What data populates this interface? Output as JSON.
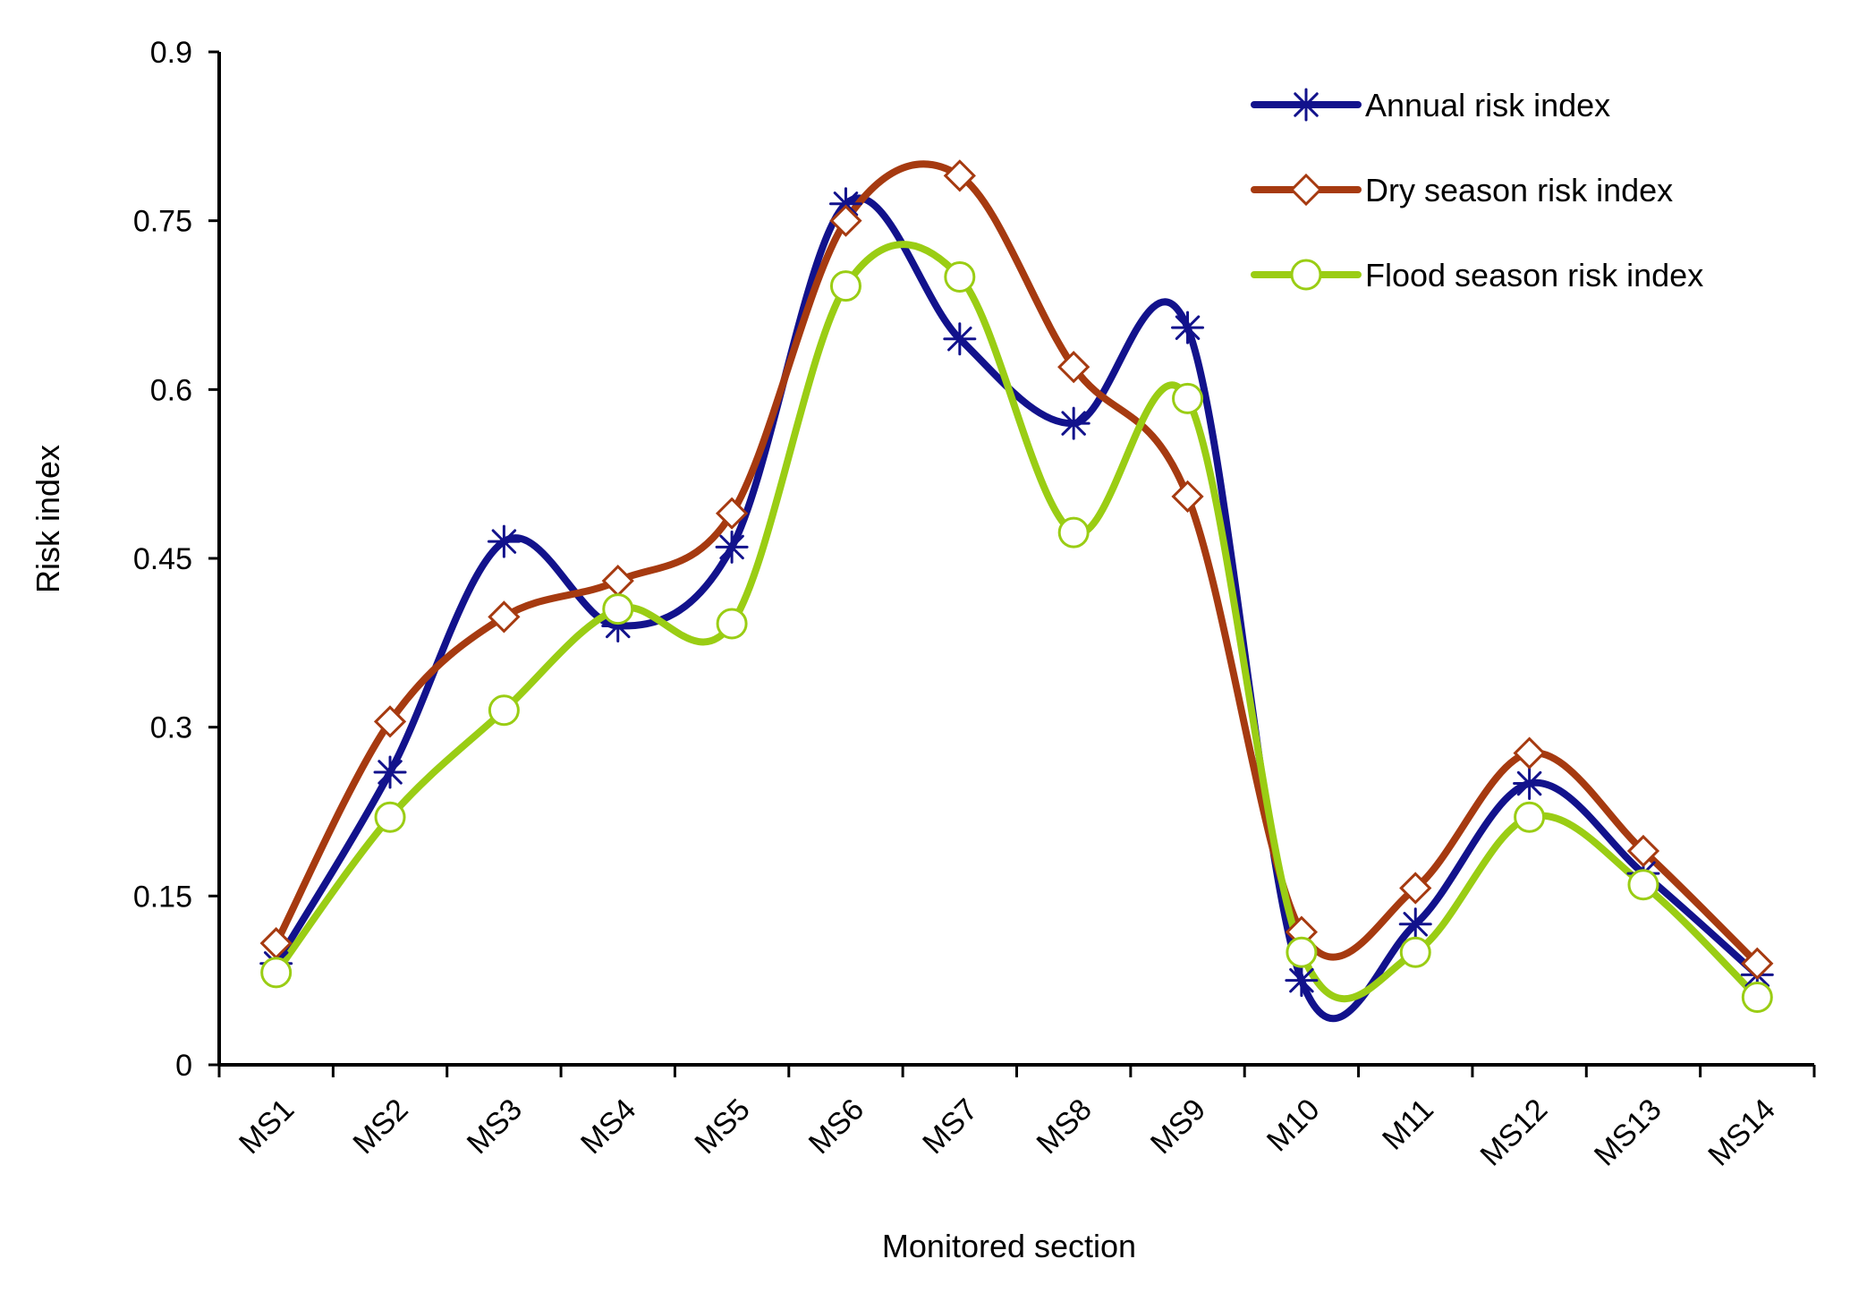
{
  "chart_data": {
    "type": "line",
    "title": "",
    "xlabel": "Monitored section",
    "ylabel": "Risk index",
    "categories": [
      "MS1",
      "MS2",
      "MS3",
      "MS4",
      "MS5",
      "MS6",
      "MS7",
      "MS8",
      "MS9",
      "M10",
      "M11",
      "MS12",
      "MS13",
      "MS14"
    ],
    "ylim": [
      0,
      0.9
    ],
    "yticks": [
      0,
      0.15,
      0.3,
      0.45,
      0.6,
      0.75,
      0.9
    ],
    "ytick_labels": [
      "0",
      "0.15",
      "0.3",
      "0.45",
      "0.6",
      "0.75",
      "0.9"
    ],
    "grid": false,
    "smooth": true,
    "legend_position": "top-right",
    "series": [
      {
        "name": "Annual risk index",
        "color": "#12128c",
        "marker": "asterisk",
        "values": [
          0.09,
          0.26,
          0.465,
          0.39,
          0.46,
          0.765,
          0.645,
          0.57,
          0.655,
          0.075,
          0.125,
          0.25,
          0.17,
          0.08
        ]
      },
      {
        "name": "Dry season risk index",
        "color": "#a63a10",
        "marker": "diamond",
        "values": [
          0.108,
          0.305,
          0.398,
          0.43,
          0.49,
          0.75,
          0.79,
          0.62,
          0.505,
          0.118,
          0.157,
          0.277,
          0.19,
          0.09
        ]
      },
      {
        "name": "Flood season risk index",
        "color": "#9acd14",
        "marker": "circle",
        "values": [
          0.082,
          0.22,
          0.315,
          0.405,
          0.392,
          0.692,
          0.7,
          0.473,
          0.592,
          0.1,
          0.1,
          0.22,
          0.16,
          0.06
        ]
      }
    ]
  }
}
